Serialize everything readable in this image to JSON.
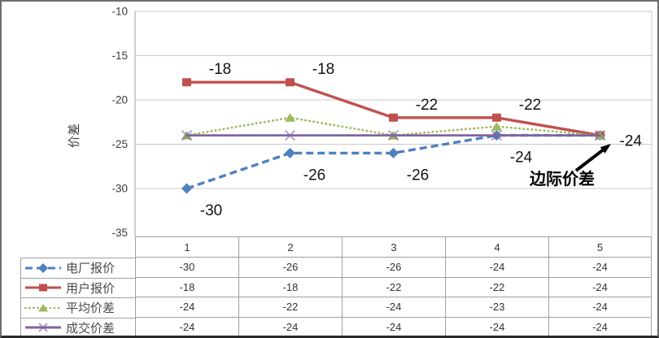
{
  "chart_data": {
    "type": "line",
    "title": "",
    "xlabel": "",
    "ylabel": "价差",
    "categories": [
      "1",
      "2",
      "3",
      "4",
      "5"
    ],
    "ylim": [
      -35,
      -10
    ],
    "yticks": [
      "-10",
      "-15",
      "-20",
      "-25",
      "-30",
      "-35"
    ],
    "grid": true,
    "legend_position": "bottom-left-table",
    "series": [
      {
        "name": "电厂报价",
        "color": "#4F81BD",
        "marker": "diamond",
        "line_style": "dashed",
        "values": [
          -30,
          -26,
          -26,
          -24,
          -24
        ],
        "point_labels": [
          {
            "index": 0,
            "text": "-30",
            "pos": "below"
          },
          {
            "index": 1,
            "text": "-26",
            "pos": "below"
          },
          {
            "index": 2,
            "text": "-26",
            "pos": "below"
          },
          {
            "index": 3,
            "text": "-24",
            "pos": "below"
          }
        ]
      },
      {
        "name": "用户报价",
        "color": "#C0504D",
        "marker": "square",
        "line_style": "solid",
        "values": [
          -18,
          -18,
          -22,
          -22,
          -24
        ],
        "point_labels": [
          {
            "index": 0,
            "text": "-18",
            "pos": "above"
          },
          {
            "index": 1,
            "text": "-18",
            "pos": "above"
          },
          {
            "index": 2,
            "text": "-22",
            "pos": "above"
          },
          {
            "index": 3,
            "text": "-22",
            "pos": "above"
          },
          {
            "index": 4,
            "text": "-24",
            "pos": "right"
          }
        ]
      },
      {
        "name": "平均价差",
        "color": "#9BBB59",
        "marker": "triangle",
        "line_style": "dotted",
        "values": [
          -24,
          -22,
          -24,
          -23,
          -24
        ],
        "point_labels": []
      },
      {
        "name": "成交价差",
        "color": "#8064A2",
        "marker": "x",
        "line_style": "solid",
        "values": [
          -24,
          -24,
          -24,
          -24,
          -24
        ],
        "point_labels": []
      }
    ],
    "annotation": {
      "text": "边际价差"
    },
    "data_table": {
      "column_headers": [
        "1",
        "2",
        "3",
        "4",
        "5"
      ],
      "rows": [
        {
          "label": "电厂报价",
          "values": [
            "-30",
            "-26",
            "-26",
            "-24",
            "-24"
          ]
        },
        {
          "label": "用户报价",
          "values": [
            "-18",
            "-18",
            "-22",
            "-22",
            "-24"
          ]
        },
        {
          "label": "平均价差",
          "values": [
            "-24",
            "-22",
            "-24",
            "-23",
            "-24"
          ]
        },
        {
          "label": "成交价差",
          "values": [
            "-24",
            "-24",
            "-24",
            "-24",
            "-24"
          ]
        }
      ]
    }
  },
  "colors": {
    "series_blue": "#4F81BD",
    "series_red": "#C0504D",
    "series_green": "#9BBB59",
    "series_purple": "#8064A2",
    "gridline": "#C8C8C8",
    "axis_line": "#9c9c9c",
    "table_border": "#A0A0A0"
  }
}
